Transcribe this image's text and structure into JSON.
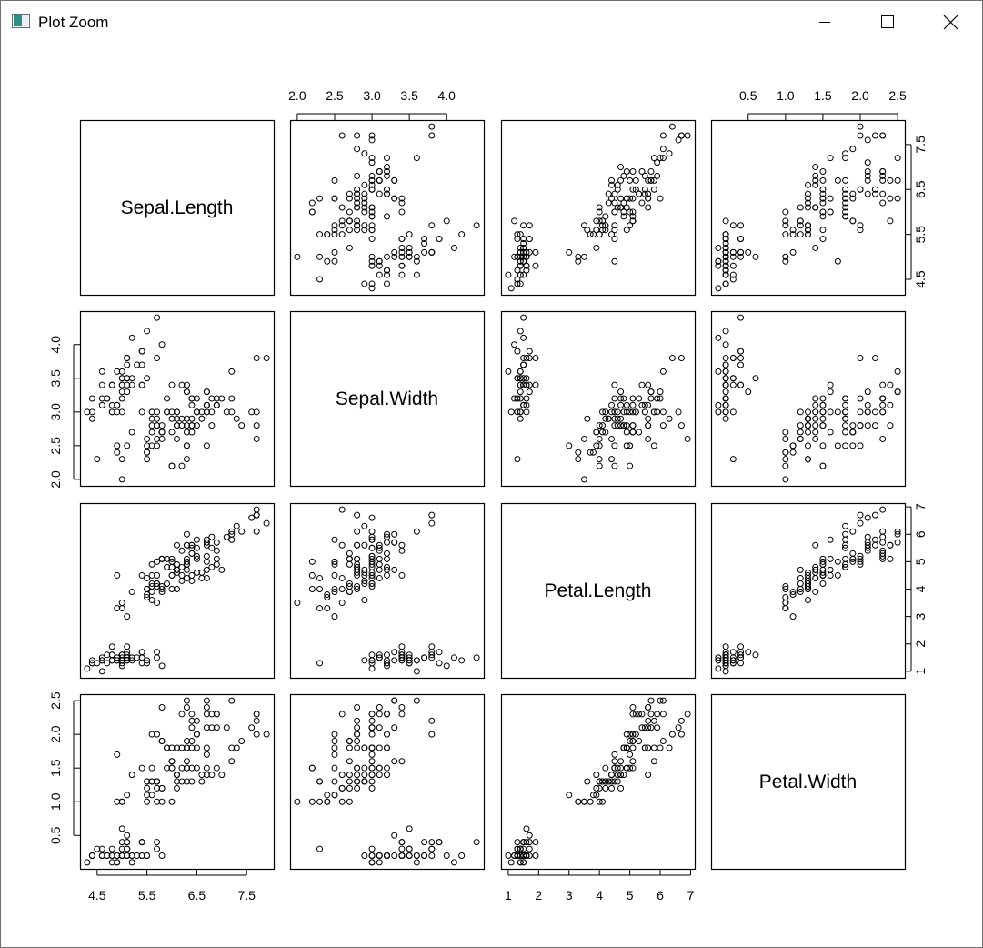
{
  "window": {
    "title": "Plot Zoom",
    "icon": "r-plot-window-icon",
    "controls": {
      "minimize": "minimize-icon",
      "maximize": "maximize-icon",
      "close": "close-icon"
    }
  },
  "chart_data": {
    "type": "scatter",
    "layout": "scatterplot-matrix",
    "variables": [
      "Sepal.Length",
      "Sepal.Width",
      "Petal.Length",
      "Petal.Width"
    ],
    "axis_ticks": {
      "Sepal.Length": [
        "4.5",
        "5.5",
        "6.5",
        "7.5"
      ],
      "Sepal.Width": [
        "2.0",
        "2.5",
        "3.0",
        "3.5",
        "4.0"
      ],
      "Petal.Length": [
        "1",
        "2",
        "3",
        "4",
        "5",
        "6",
        "7"
      ],
      "Petal.Width": [
        "0.5",
        "1.0",
        "1.5",
        "2.0",
        "2.5"
      ]
    },
    "point_style": "open circle",
    "observations": [
      [
        5.1,
        3.5,
        1.4,
        0.2
      ],
      [
        4.9,
        3.0,
        1.4,
        0.2
      ],
      [
        4.7,
        3.2,
        1.3,
        0.2
      ],
      [
        4.6,
        3.1,
        1.5,
        0.2
      ],
      [
        5.0,
        3.6,
        1.4,
        0.2
      ],
      [
        5.4,
        3.9,
        1.7,
        0.4
      ],
      [
        4.6,
        3.4,
        1.4,
        0.3
      ],
      [
        5.0,
        3.4,
        1.5,
        0.2
      ],
      [
        4.4,
        2.9,
        1.4,
        0.2
      ],
      [
        4.9,
        3.1,
        1.5,
        0.1
      ],
      [
        5.4,
        3.7,
        1.5,
        0.2
      ],
      [
        4.8,
        3.4,
        1.6,
        0.2
      ],
      [
        4.8,
        3.0,
        1.4,
        0.1
      ],
      [
        4.3,
        3.0,
        1.1,
        0.1
      ],
      [
        5.8,
        4.0,
        1.2,
        0.2
      ],
      [
        5.7,
        4.4,
        1.5,
        0.4
      ],
      [
        5.4,
        3.9,
        1.3,
        0.4
      ],
      [
        5.1,
        3.5,
        1.4,
        0.3
      ],
      [
        5.7,
        3.8,
        1.7,
        0.3
      ],
      [
        5.1,
        3.8,
        1.5,
        0.3
      ],
      [
        5.4,
        3.4,
        1.7,
        0.2
      ],
      [
        5.1,
        3.7,
        1.5,
        0.4
      ],
      [
        4.6,
        3.6,
        1.0,
        0.2
      ],
      [
        5.1,
        3.3,
        1.7,
        0.5
      ],
      [
        4.8,
        3.4,
        1.9,
        0.2
      ],
      [
        5.0,
        3.0,
        1.6,
        0.2
      ],
      [
        5.0,
        3.4,
        1.6,
        0.4
      ],
      [
        5.2,
        3.5,
        1.5,
        0.2
      ],
      [
        5.2,
        3.4,
        1.4,
        0.2
      ],
      [
        4.7,
        3.2,
        1.6,
        0.2
      ],
      [
        4.8,
        3.1,
        1.6,
        0.2
      ],
      [
        5.4,
        3.4,
        1.5,
        0.4
      ],
      [
        5.2,
        4.1,
        1.5,
        0.1
      ],
      [
        5.5,
        4.2,
        1.4,
        0.2
      ],
      [
        4.9,
        3.1,
        1.5,
        0.2
      ],
      [
        5.0,
        3.2,
        1.2,
        0.2
      ],
      [
        5.5,
        3.5,
        1.3,
        0.2
      ],
      [
        4.9,
        3.6,
        1.4,
        0.1
      ],
      [
        4.4,
        3.0,
        1.3,
        0.2
      ],
      [
        5.1,
        3.4,
        1.5,
        0.2
      ],
      [
        5.0,
        3.5,
        1.3,
        0.3
      ],
      [
        4.5,
        2.3,
        1.3,
        0.3
      ],
      [
        4.4,
        3.2,
        1.3,
        0.2
      ],
      [
        5.0,
        3.5,
        1.6,
        0.6
      ],
      [
        5.1,
        3.8,
        1.9,
        0.4
      ],
      [
        4.8,
        3.0,
        1.4,
        0.3
      ],
      [
        5.1,
        3.8,
        1.6,
        0.2
      ],
      [
        4.6,
        3.2,
        1.4,
        0.2
      ],
      [
        5.3,
        3.7,
        1.5,
        0.2
      ],
      [
        5.0,
        3.3,
        1.4,
        0.2
      ],
      [
        7.0,
        3.2,
        4.7,
        1.4
      ],
      [
        6.4,
        3.2,
        4.5,
        1.5
      ],
      [
        6.9,
        3.1,
        4.9,
        1.5
      ],
      [
        5.5,
        2.3,
        4.0,
        1.3
      ],
      [
        6.5,
        2.8,
        4.6,
        1.5
      ],
      [
        5.7,
        2.8,
        4.5,
        1.3
      ],
      [
        6.3,
        3.3,
        4.7,
        1.6
      ],
      [
        4.9,
        2.4,
        3.3,
        1.0
      ],
      [
        6.6,
        2.9,
        4.6,
        1.3
      ],
      [
        5.2,
        2.7,
        3.9,
        1.4
      ],
      [
        5.0,
        2.0,
        3.5,
        1.0
      ],
      [
        5.9,
        3.0,
        4.2,
        1.5
      ],
      [
        6.0,
        2.2,
        4.0,
        1.0
      ],
      [
        6.1,
        2.9,
        4.7,
        1.4
      ],
      [
        5.6,
        2.9,
        3.6,
        1.3
      ],
      [
        6.7,
        3.1,
        4.4,
        1.4
      ],
      [
        5.6,
        3.0,
        4.5,
        1.5
      ],
      [
        5.8,
        2.7,
        4.1,
        1.0
      ],
      [
        6.2,
        2.2,
        4.5,
        1.5
      ],
      [
        5.6,
        2.5,
        3.9,
        1.1
      ],
      [
        5.9,
        3.2,
        4.8,
        1.8
      ],
      [
        6.1,
        2.8,
        4.0,
        1.3
      ],
      [
        6.3,
        2.5,
        4.9,
        1.5
      ],
      [
        6.1,
        2.8,
        4.7,
        1.2
      ],
      [
        6.4,
        2.9,
        4.3,
        1.3
      ],
      [
        6.6,
        3.0,
        4.4,
        1.4
      ],
      [
        6.8,
        2.8,
        4.8,
        1.4
      ],
      [
        6.7,
        3.0,
        5.0,
        1.7
      ],
      [
        6.0,
        2.9,
        4.5,
        1.5
      ],
      [
        5.7,
        2.6,
        3.5,
        1.0
      ],
      [
        5.5,
        2.4,
        3.8,
        1.1
      ],
      [
        5.5,
        2.4,
        3.7,
        1.0
      ],
      [
        5.8,
        2.7,
        3.9,
        1.2
      ],
      [
        6.0,
        2.7,
        5.1,
        1.6
      ],
      [
        5.4,
        3.0,
        4.5,
        1.5
      ],
      [
        6.0,
        3.4,
        4.5,
        1.6
      ],
      [
        6.7,
        3.1,
        4.7,
        1.5
      ],
      [
        6.3,
        2.3,
        4.4,
        1.3
      ],
      [
        5.6,
        3.0,
        4.1,
        1.3
      ],
      [
        5.5,
        2.5,
        4.0,
        1.3
      ],
      [
        5.5,
        2.6,
        4.4,
        1.2
      ],
      [
        6.1,
        3.0,
        4.6,
        1.4
      ],
      [
        5.8,
        2.6,
        4.0,
        1.2
      ],
      [
        5.0,
        2.3,
        3.3,
        1.0
      ],
      [
        5.6,
        2.7,
        4.2,
        1.3
      ],
      [
        5.7,
        3.0,
        4.2,
        1.2
      ],
      [
        5.7,
        2.9,
        4.2,
        1.3
      ],
      [
        6.2,
        2.9,
        4.3,
        1.3
      ],
      [
        5.1,
        2.5,
        3.0,
        1.1
      ],
      [
        5.7,
        2.8,
        4.1,
        1.3
      ],
      [
        6.3,
        3.3,
        6.0,
        2.5
      ],
      [
        5.8,
        2.7,
        5.1,
        1.9
      ],
      [
        7.1,
        3.0,
        5.9,
        2.1
      ],
      [
        6.3,
        2.9,
        5.6,
        1.8
      ],
      [
        6.5,
        3.0,
        5.8,
        2.2
      ],
      [
        7.6,
        3.0,
        6.6,
        2.1
      ],
      [
        4.9,
        2.5,
        4.5,
        1.7
      ],
      [
        7.3,
        2.9,
        6.3,
        1.8
      ],
      [
        6.7,
        2.5,
        5.8,
        1.8
      ],
      [
        7.2,
        3.6,
        6.1,
        2.5
      ],
      [
        6.5,
        3.2,
        5.1,
        2.0
      ],
      [
        6.4,
        2.7,
        5.3,
        1.9
      ],
      [
        6.8,
        3.0,
        5.5,
        2.1
      ],
      [
        5.7,
        2.5,
        5.0,
        2.0
      ],
      [
        5.8,
        2.8,
        5.1,
        2.4
      ],
      [
        6.4,
        3.2,
        5.3,
        2.3
      ],
      [
        6.5,
        3.0,
        5.5,
        1.8
      ],
      [
        7.7,
        3.8,
        6.7,
        2.2
      ],
      [
        7.7,
        2.6,
        6.9,
        2.3
      ],
      [
        6.0,
        2.2,
        5.0,
        1.5
      ],
      [
        6.9,
        3.2,
        5.7,
        2.3
      ],
      [
        5.6,
        2.8,
        4.9,
        2.0
      ],
      [
        7.7,
        2.8,
        6.7,
        2.0
      ],
      [
        6.3,
        2.7,
        4.9,
        1.8
      ],
      [
        6.7,
        3.3,
        5.7,
        2.1
      ],
      [
        7.2,
        3.2,
        6.0,
        1.8
      ],
      [
        6.2,
        2.8,
        4.8,
        1.8
      ],
      [
        6.1,
        3.0,
        4.9,
        1.8
      ],
      [
        6.4,
        2.8,
        5.6,
        2.1
      ],
      [
        7.2,
        3.0,
        5.8,
        1.6
      ],
      [
        7.4,
        2.8,
        6.1,
        1.9
      ],
      [
        7.9,
        3.8,
        6.4,
        2.0
      ],
      [
        6.4,
        2.8,
        5.6,
        2.2
      ],
      [
        6.3,
        2.8,
        5.1,
        1.5
      ],
      [
        6.1,
        2.6,
        5.6,
        1.4
      ],
      [
        7.7,
        3.0,
        6.1,
        2.3
      ],
      [
        6.3,
        3.4,
        5.6,
        2.4
      ],
      [
        6.4,
        3.1,
        5.5,
        1.8
      ],
      [
        6.0,
        3.0,
        4.8,
        1.8
      ],
      [
        6.9,
        3.1,
        5.4,
        2.1
      ],
      [
        6.7,
        3.1,
        5.6,
        2.4
      ],
      [
        6.9,
        3.1,
        5.1,
        2.3
      ],
      [
        5.8,
        2.7,
        5.1,
        1.9
      ],
      [
        6.8,
        3.2,
        5.9,
        2.3
      ],
      [
        6.7,
        3.3,
        5.7,
        2.5
      ],
      [
        6.7,
        3.0,
        5.2,
        2.3
      ],
      [
        6.3,
        2.5,
        5.0,
        1.9
      ],
      [
        6.5,
        3.0,
        5.2,
        2.0
      ],
      [
        6.2,
        3.4,
        5.4,
        2.3
      ],
      [
        5.9,
        3.0,
        5.1,
        1.8
      ]
    ]
  }
}
